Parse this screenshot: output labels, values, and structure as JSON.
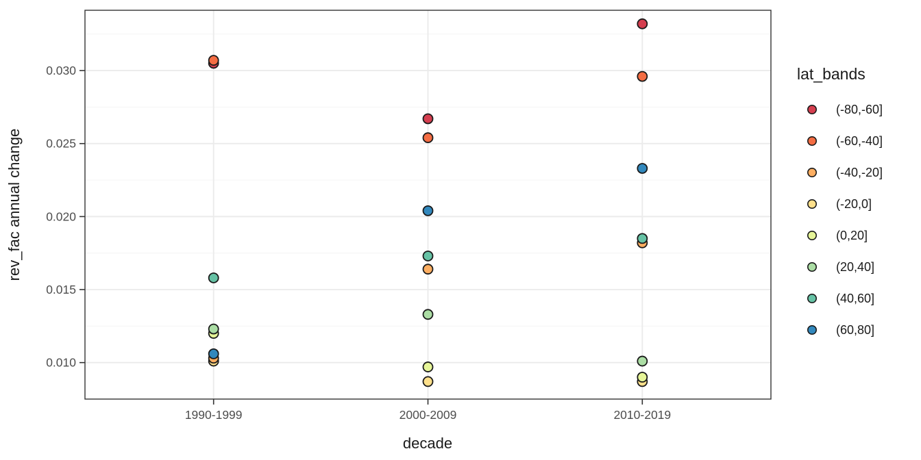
{
  "figure": {
    "background": "#ffffff",
    "panel_background": "#ffffff",
    "panel_border_color": "#333333",
    "grid_major_color": "#ebebeb",
    "grid_minor_color": "#f4f4f4",
    "tick_mark_color": "#333333",
    "tick_text_color": "#4d4d4d",
    "title_text_color": "#1a1a1a",
    "point_stroke_color": "#1a1a1a"
  },
  "chart_data": {
    "type": "scatter",
    "title": "",
    "xlabel": "decade",
    "ylabel": "rev_fac annual change",
    "categories": [
      "1990-1999",
      "2000-2009",
      "2010-2019"
    ],
    "series": [
      {
        "name": "(-80,-60]",
        "color": "#D53E4F",
        "values": [
          0.0305,
          0.0267,
          0.0332
        ]
      },
      {
        "name": "(-60,-40]",
        "color": "#F46D43",
        "values": [
          0.0307,
          0.0254,
          0.0296
        ]
      },
      {
        "name": "(-40,-20]",
        "color": "#FDAE61",
        "values": [
          0.0103,
          0.0164,
          0.0182
        ]
      },
      {
        "name": "(-20,0]",
        "color": "#FEE08B",
        "values": [
          0.0101,
          0.0087,
          0.0087
        ]
      },
      {
        "name": "(0,20]",
        "color": "#E6F598",
        "values": [
          0.012,
          0.0097,
          0.009
        ]
      },
      {
        "name": "(20,40]",
        "color": "#ABDDA4",
        "values": [
          0.0123,
          0.0133,
          0.0101
        ]
      },
      {
        "name": "(40,60]",
        "color": "#66C2A5",
        "values": [
          0.0158,
          0.0173,
          0.0185
        ]
      },
      {
        "name": "(60,80]",
        "color": "#3288BD",
        "values": [
          0.0106,
          0.0204,
          0.0233
        ]
      }
    ],
    "y_axis": {
      "ticks": [
        0.01,
        0.015,
        0.02,
        0.025,
        0.03
      ],
      "tick_labels": [
        "0.010",
        "0.015",
        "0.020",
        "0.025",
        "0.030"
      ],
      "minor_gridlines": [
        0.0125,
        0.0175,
        0.0225,
        0.0275,
        0.0325
      ],
      "range": [
        0.0075,
        0.03413
      ],
      "grid": true
    },
    "x_axis": {
      "grid": true
    },
    "legend": {
      "title": "lat_bands",
      "position": "right",
      "entries": [
        "(-80,-60]",
        "(-60,-40]",
        "(-40,-20]",
        "(-20,0]",
        "(0,20]",
        "(20,40]",
        "(40,60]",
        "(60,80]"
      ]
    }
  }
}
